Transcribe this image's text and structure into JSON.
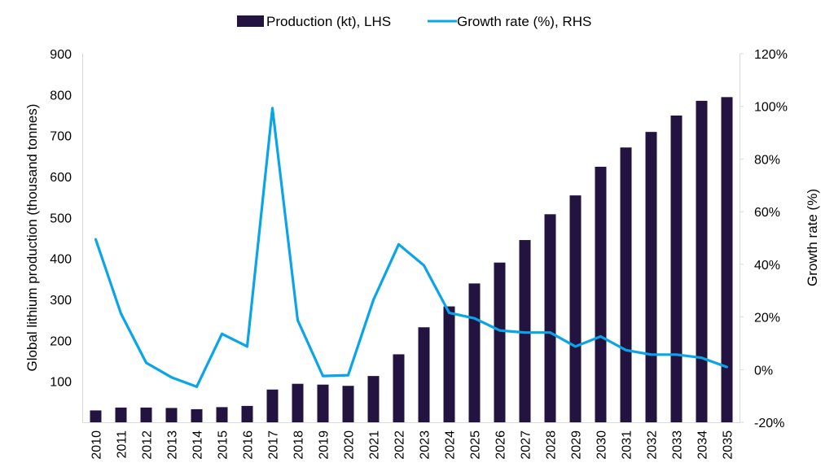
{
  "chart_data": {
    "type": "bar+line",
    "title": "",
    "categories": [
      "2010",
      "2011",
      "2012",
      "2013",
      "2014",
      "2015",
      "2016",
      "2017",
      "2018",
      "2019",
      "2020",
      "2021",
      "2022",
      "2023",
      "2024",
      "2025",
      "2026",
      "2027",
      "2028",
      "2029",
      "2030",
      "2031",
      "2032",
      "2033",
      "2034",
      "2035"
    ],
    "series": [
      {
        "name": "Production (kt), LHS",
        "type": "bar",
        "axis": "left",
        "color": "#231340",
        "values": [
          29,
          36,
          36,
          35,
          32,
          37,
          40,
          80,
          94,
          92,
          89,
          113,
          166,
          232,
          283,
          339,
          390,
          445,
          508,
          554,
          624,
          671,
          709,
          749,
          785,
          794
        ]
      },
      {
        "name": "Growth rate (%), RHS",
        "type": "line",
        "axis": "right",
        "color": "#0aa4e8",
        "values": [
          49.5,
          21.3,
          2.6,
          -2.9,
          -6.5,
          13.6,
          8.8,
          99.3,
          18.8,
          -2.4,
          -2.1,
          26.5,
          47.6,
          39.6,
          21.6,
          19.5,
          14.9,
          14.1,
          14.1,
          8.8,
          12.6,
          7.4,
          5.7,
          5.7,
          4.5,
          1.0
        ]
      }
    ],
    "left_axis": {
      "label": "Global lithium production (thousand tonnes)",
      "range": [
        0,
        900
      ],
      "ticks": [
        100,
        200,
        300,
        400,
        500,
        600,
        700,
        800,
        900
      ],
      "tick_labels": [
        "100",
        "200",
        "300",
        "400",
        "500",
        "600",
        "700",
        "800",
        "900"
      ]
    },
    "right_axis": {
      "label": "Growth rate (%)",
      "range": [
        -20,
        120
      ],
      "ticks": [
        -20,
        0,
        20,
        40,
        60,
        80,
        100,
        120
      ],
      "tick_labels": [
        "-20%",
        "0%",
        "20%",
        "40%",
        "60%",
        "80%",
        "100%",
        "120%"
      ]
    },
    "xlabel": "",
    "grid": false,
    "legend": {
      "position": "top-center",
      "entries": [
        "Production (kt), LHS",
        "Growth rate (%), RHS"
      ]
    }
  }
}
